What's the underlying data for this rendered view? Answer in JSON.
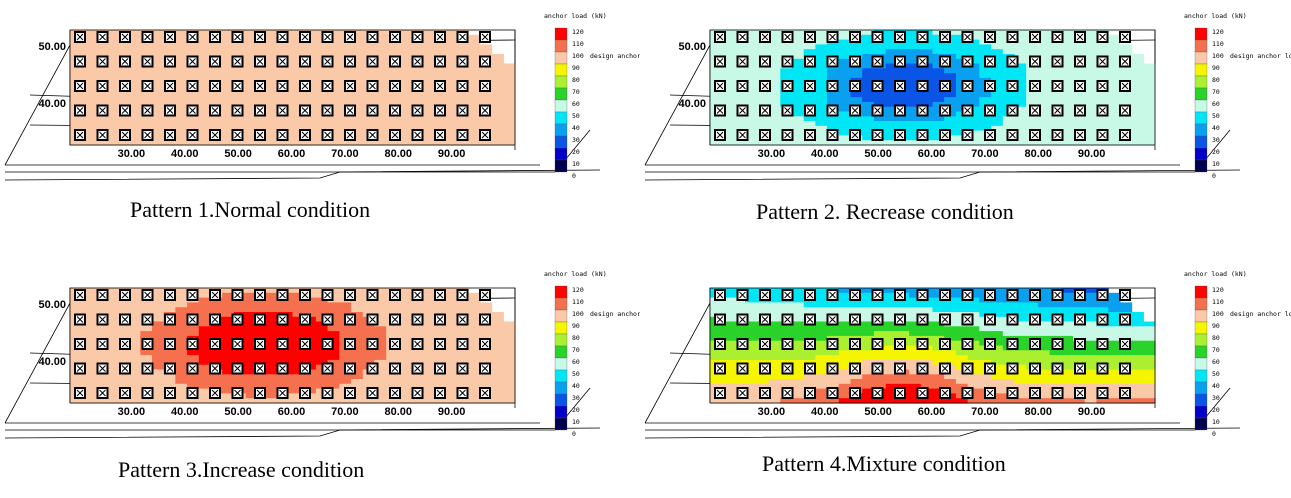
{
  "figure": {
    "panels": [
      {
        "caption": "Pattern 1.Normal condition",
        "pattern": "normal"
      },
      {
        "caption": "Pattern 2. Recrease condition",
        "pattern": "decrease"
      },
      {
        "caption": "Pattern 3.Increase condition",
        "pattern": "increase"
      },
      {
        "caption": "Pattern 4.Mixture condition",
        "pattern": "mixture"
      }
    ]
  },
  "chart_data": [
    {
      "type": "heatmap",
      "title": "Pattern 1.Normal condition",
      "pattern": "normal",
      "xlabel": "",
      "ylabel": "",
      "x_ticks": [
        "30.00",
        "40.00",
        "50.00",
        "60.00",
        "70.00",
        "80.00",
        "90.00"
      ],
      "y_ticks": [
        "50.00",
        "40.00"
      ],
      "xlim": [
        20,
        100
      ],
      "colorbar_title": "anchor load (kN)",
      "colorbar_ticks": [
        120,
        110,
        100,
        90,
        80,
        70,
        60,
        50,
        40,
        30,
        20,
        10,
        0
      ],
      "design_label": "design anchor load",
      "design_value": 100,
      "field": {
        "base": 95,
        "peak_delta": 0,
        "peak_x": 55,
        "peak_row": 2
      },
      "anchor_rows": 5
    },
    {
      "type": "heatmap",
      "title": "Pattern 2. Recrease condition",
      "pattern": "decrease",
      "xlabel": "",
      "ylabel": "",
      "x_ticks": [
        "30.00",
        "40.00",
        "50.00",
        "60.00",
        "70.00",
        "80.00",
        "90.00"
      ],
      "y_ticks": [
        "50.00",
        "40.00"
      ],
      "xlim": [
        20,
        100
      ],
      "colorbar_title": "anchor load (kN)",
      "colorbar_ticks": [
        120,
        110,
        100,
        90,
        80,
        70,
        60,
        50,
        40,
        30,
        20,
        10,
        0
      ],
      "design_label": "design anchor load",
      "design_value": 100,
      "field": {
        "base": 55,
        "peak_delta": -35,
        "peak_x": 55,
        "peak_row": 2
      },
      "anchor_rows": 5
    },
    {
      "type": "heatmap",
      "title": "Pattern 3.Increase condition",
      "pattern": "increase",
      "xlabel": "",
      "ylabel": "",
      "x_ticks": [
        "30.00",
        "40.00",
        "50.00",
        "60.00",
        "70.00",
        "80.00",
        "90.00"
      ],
      "y_ticks": [
        "50.00",
        "40.00"
      ],
      "xlim": [
        20,
        100
      ],
      "colorbar_title": "anchor load (kN)",
      "colorbar_ticks": [
        120,
        110,
        100,
        90,
        80,
        70,
        60,
        50,
        40,
        30,
        20,
        10,
        0
      ],
      "design_label": "design anchor load",
      "design_value": 100,
      "field": {
        "base": 95,
        "peak_delta": 30,
        "peak_x": 55,
        "peak_row": 2
      },
      "anchor_rows": 5
    },
    {
      "type": "heatmap",
      "title": "Pattern 4.Mixture condition",
      "pattern": "mixture",
      "xlabel": "",
      "ylabel": "",
      "x_ticks": [
        "30.00",
        "40.00",
        "50.00",
        "60.00",
        "70.00",
        "80.00",
        "90.00"
      ],
      "y_ticks": [],
      "xlim": [
        20,
        100
      ],
      "colorbar_title": "anchor load (kN)",
      "colorbar_ticks": [
        120,
        110,
        100,
        90,
        80,
        70,
        60,
        50,
        40,
        30,
        20,
        10,
        0
      ],
      "design_label": "design anchor load",
      "design_value": 100,
      "field": {
        "base": 75,
        "peak_delta": 45,
        "peak_x": 55,
        "peak_row": 4
      },
      "anchor_rows": 5
    }
  ],
  "colorscale": [
    {
      "min": 110,
      "color": "#ff0000"
    },
    {
      "min": 100,
      "color": "#f4704f"
    },
    {
      "min": 90,
      "color": "#fac9a8"
    },
    {
      "min": 80,
      "color": "#f5f500"
    },
    {
      "min": 70,
      "color": "#aaf030"
    },
    {
      "min": 60,
      "color": "#29d329"
    },
    {
      "min": 50,
      "color": "#c8f8e6"
    },
    {
      "min": 40,
      "color": "#00e6f5"
    },
    {
      "min": 30,
      "color": "#0aa0f0"
    },
    {
      "min": 20,
      "color": "#0a55e6"
    },
    {
      "min": 10,
      "color": "#0000c8"
    },
    {
      "min": 0,
      "color": "#000050"
    }
  ]
}
